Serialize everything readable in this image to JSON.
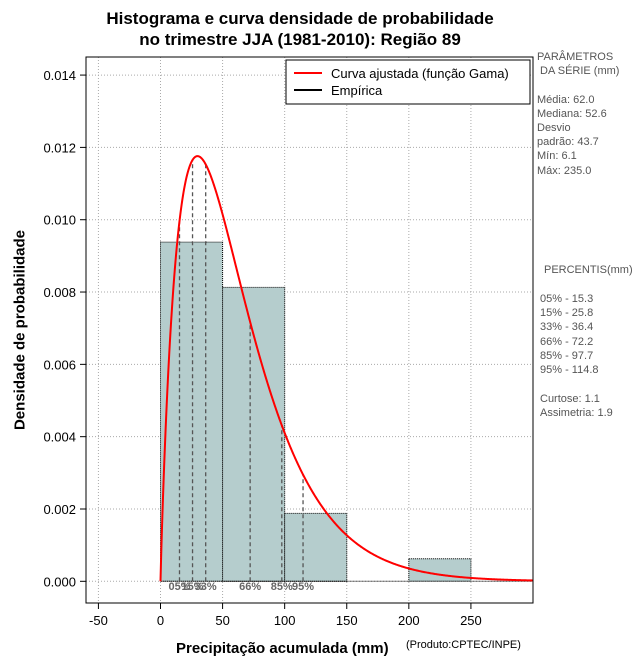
{
  "title": {
    "line1": "Histograma e curva densidade de probabilidade",
    "line2": "no trimestre JJA (1981-2010): Região 89"
  },
  "chart_data": {
    "type": "bar",
    "title": "Histograma e curva densidade de probabilidade no trimestre JJA (1981-2010): Região 89",
    "xlabel": "Precipitação acumulada (mm)",
    "ylabel": "Densidade de probabilidade",
    "xlim": [
      -60,
      300
    ],
    "ylim": [
      -0.0006,
      0.0145
    ],
    "x_ticks": [
      -50,
      0,
      50,
      100,
      150,
      200,
      250
    ],
    "x_tick_labels": [
      "-50",
      "0",
      "50",
      "100",
      "150",
      "200",
      "250"
    ],
    "y_ticks": [
      0.0,
      0.002,
      0.004,
      0.006,
      0.008,
      0.01,
      0.012,
      0.014
    ],
    "y_tick_labels": [
      "0.000",
      "0.002",
      "0.004",
      "0.006",
      "0.008",
      "0.010",
      "0.012",
      "0.014"
    ],
    "grid": true,
    "histogram": {
      "name": "Empírica",
      "bins": [
        {
          "from": 0,
          "to": 50,
          "density": 0.00938
        },
        {
          "from": 50,
          "to": 100,
          "density": 0.00813
        },
        {
          "from": 100,
          "to": 150,
          "density": 0.00188
        },
        {
          "from": 150,
          "to": 200,
          "density": 0.0
        },
        {
          "from": 200,
          "to": 250,
          "density": 0.000625
        }
      ]
    },
    "curve": {
      "name": "Curva ajustada (função Gama)",
      "color": "#ff0000",
      "distribution": "gamma",
      "shape": 1.92,
      "scale": 32.4,
      "location": 0
    },
    "percentile_lines": [
      {
        "label": "05%",
        "value": 15.3
      },
      {
        "label": "15%",
        "value": 25.8
      },
      {
        "label": "33%",
        "value": 36.4
      },
      {
        "label": "66%",
        "value": 72.2
      },
      {
        "label": "85%",
        "value": 97.7
      },
      {
        "label": "95%",
        "value": 114.8
      }
    ],
    "legend": {
      "position": "top-right",
      "entries": [
        "Curva ajustada (função Gama)",
        "Empírica"
      ]
    },
    "colors": {
      "bar_fill": "#b5cdcd",
      "curve": "#ff0000",
      "grid": "#aaaaaa",
      "percentile": "#555555"
    }
  },
  "side_panel": {
    "params_header_1": "PARÂMETROS",
    "params_header_2": "DA SÉRIE (mm)",
    "media": "Média:  62.0",
    "mediana": "Mediana:  52.6",
    "desvio_1": "Desvio",
    "desvio_2": "padrão:  43.7",
    "min": "Mín:  6.1",
    "max": "Máx:  235.0",
    "percentis_header": "PERCENTIS(mm)",
    "p05": "05% -  15.3",
    "p15": "15% -  25.8",
    "p33": "33% -  36.4",
    "p66": "66% -  72.2",
    "p85": "85% -  97.7",
    "p95": "95% -  114.8",
    "curtose": "Curtose:  1.1",
    "assimetria": "Assimetria:  1.9"
  },
  "credit": "(Produto:CPTEC/INPE)"
}
